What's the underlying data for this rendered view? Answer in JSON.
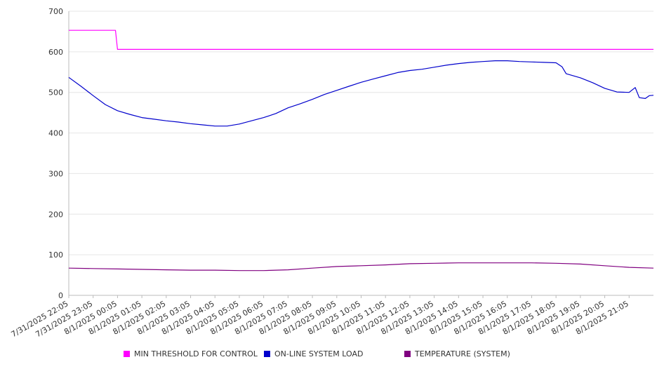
{
  "chart_data": {
    "type": "line",
    "ylim": [
      0,
      700
    ],
    "y_ticks": [
      0,
      100,
      200,
      300,
      400,
      500,
      600,
      700
    ],
    "grid": "horizontal",
    "legend_position": "bottom",
    "x_tick_labels": [
      "7/31/2025 22:05",
      "7/31/2025 23:05",
      "8/1/2025 00:05",
      "8/1/2025 01:05",
      "8/1/2025 02:05",
      "8/1/2025 03:05",
      "8/1/2025 04:05",
      "8/1/2025 05:05",
      "8/1/2025 06:05",
      "8/1/2025 07:05",
      "8/1/2025 08:05",
      "8/1/2025 09:05",
      "8/1/2025 10:05",
      "8/1/2025 11:05",
      "8/1/2025 12:05",
      "8/1/2025 13:05",
      "8/1/2025 14:05",
      "8/1/2025 15:05",
      "8/1/2025 16:05",
      "8/1/2025 17:05",
      "8/1/2025 18:05",
      "8/1/2025 19:05",
      "8/1/2025 20:05",
      "8/1/2025 21:05"
    ],
    "x_range": [
      "7/31/2025 22:05",
      "8/1/2025 22:05"
    ],
    "series": [
      {
        "name": "MIN THRESHOLD FOR CONTROL",
        "color": "#ff00ff",
        "points": [
          [
            "7/31/2025 22:05",
            653
          ],
          [
            "8/1/2025 00:00",
            653
          ],
          [
            "8/1/2025 00:05",
            606
          ],
          [
            "8/1/2025 22:05",
            606
          ]
        ]
      },
      {
        "name": "ON-LINE SYSTEM LOAD",
        "color": "#0000cc",
        "points": [
          [
            "7/31/2025 22:05",
            537
          ],
          [
            "7/31/2025 22:35",
            515
          ],
          [
            "7/31/2025 23:05",
            492
          ],
          [
            "7/31/2025 23:35",
            470
          ],
          [
            "8/1/2025 00:05",
            455
          ],
          [
            "8/1/2025 00:35",
            446
          ],
          [
            "8/1/2025 01:05",
            438
          ],
          [
            "8/1/2025 01:35",
            434
          ],
          [
            "8/1/2025 02:05",
            430
          ],
          [
            "8/1/2025 02:35",
            427
          ],
          [
            "8/1/2025 03:05",
            423
          ],
          [
            "8/1/2025 03:35",
            420
          ],
          [
            "8/1/2025 04:05",
            417
          ],
          [
            "8/1/2025 04:35",
            417
          ],
          [
            "8/1/2025 05:05",
            422
          ],
          [
            "8/1/2025 05:35",
            430
          ],
          [
            "8/1/2025 06:05",
            438
          ],
          [
            "8/1/2025 06:35",
            448
          ],
          [
            "8/1/2025 07:05",
            462
          ],
          [
            "8/1/2025 07:35",
            472
          ],
          [
            "8/1/2025 08:05",
            483
          ],
          [
            "8/1/2025 08:35",
            495
          ],
          [
            "8/1/2025 09:05",
            505
          ],
          [
            "8/1/2025 09:35",
            515
          ],
          [
            "8/1/2025 10:05",
            525
          ],
          [
            "8/1/2025 10:35",
            533
          ],
          [
            "8/1/2025 11:05",
            541
          ],
          [
            "8/1/2025 11:35",
            549
          ],
          [
            "8/1/2025 12:05",
            554
          ],
          [
            "8/1/2025 12:35",
            557
          ],
          [
            "8/1/2025 13:05",
            562
          ],
          [
            "8/1/2025 13:35",
            567
          ],
          [
            "8/1/2025 14:05",
            571
          ],
          [
            "8/1/2025 14:35",
            574
          ],
          [
            "8/1/2025 15:05",
            576
          ],
          [
            "8/1/2025 15:35",
            578
          ],
          [
            "8/1/2025 16:05",
            578
          ],
          [
            "8/1/2025 16:35",
            576
          ],
          [
            "8/1/2025 17:05",
            575
          ],
          [
            "8/1/2025 17:35",
            574
          ],
          [
            "8/1/2025 18:05",
            573
          ],
          [
            "8/1/2025 18:20",
            563
          ],
          [
            "8/1/2025 18:30",
            546
          ],
          [
            "8/1/2025 19:05",
            536
          ],
          [
            "8/1/2025 19:35",
            524
          ],
          [
            "8/1/2025 20:05",
            510
          ],
          [
            "8/1/2025 20:35",
            501
          ],
          [
            "8/1/2025 21:05",
            500
          ],
          [
            "8/1/2025 21:20",
            512
          ],
          [
            "8/1/2025 21:30",
            487
          ],
          [
            "8/1/2025 21:45",
            485
          ],
          [
            "8/1/2025 21:55",
            492
          ],
          [
            "8/1/2025 22:05",
            493
          ]
        ]
      },
      {
        "name": "TEMPERATURE (SYSTEM)",
        "color": "#800080",
        "points": [
          [
            "7/31/2025 22:05",
            67
          ],
          [
            "7/31/2025 23:05",
            66
          ],
          [
            "8/1/2025 00:05",
            65
          ],
          [
            "8/1/2025 01:05",
            64
          ],
          [
            "8/1/2025 02:05",
            63
          ],
          [
            "8/1/2025 03:05",
            62
          ],
          [
            "8/1/2025 04:05",
            62
          ],
          [
            "8/1/2025 05:05",
            61
          ],
          [
            "8/1/2025 06:05",
            61
          ],
          [
            "8/1/2025 07:05",
            63
          ],
          [
            "8/1/2025 08:05",
            67
          ],
          [
            "8/1/2025 09:05",
            71
          ],
          [
            "8/1/2025 10:05",
            73
          ],
          [
            "8/1/2025 11:05",
            75
          ],
          [
            "8/1/2025 12:05",
            78
          ],
          [
            "8/1/2025 13:05",
            79
          ],
          [
            "8/1/2025 14:05",
            80
          ],
          [
            "8/1/2025 15:05",
            80
          ],
          [
            "8/1/2025 16:05",
            80
          ],
          [
            "8/1/2025 17:05",
            80
          ],
          [
            "8/1/2025 18:05",
            79
          ],
          [
            "8/1/2025 19:05",
            77
          ],
          [
            "8/1/2025 20:05",
            73
          ],
          [
            "8/1/2025 21:05",
            69
          ],
          [
            "8/1/2025 22:05",
            67
          ]
        ]
      }
    ]
  }
}
